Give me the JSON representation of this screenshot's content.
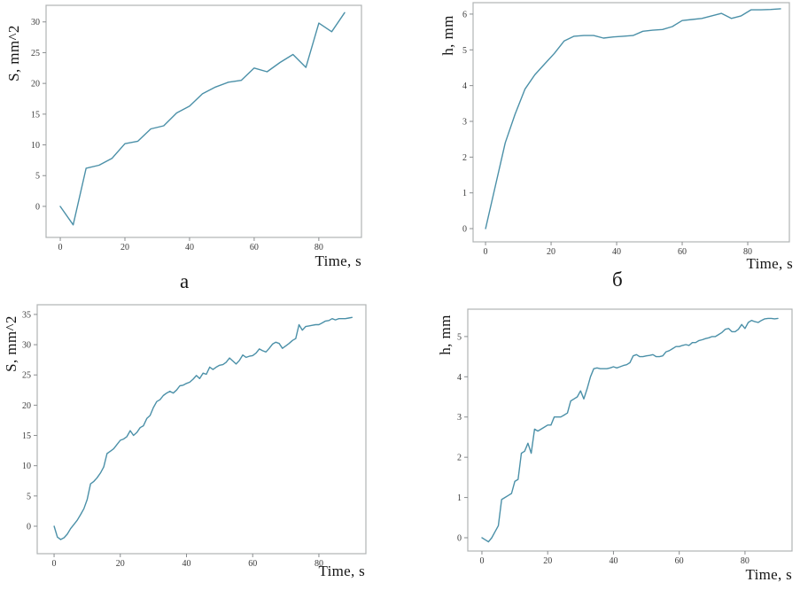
{
  "figure": {
    "line_color": "#4b90a8",
    "frame_color": "#b0b3b5",
    "tick_mark_color": "#8a8d8f",
    "tick_label_color": "#3a3a3a",
    "background": "#ffffff"
  },
  "chart_data": [
    {
      "type": "line",
      "title": "",
      "xlabel": "Time, s",
      "ylabel": "S, mm^2",
      "sublabel": "a",
      "legend": null,
      "grid": false,
      "xticks": [
        0,
        20,
        40,
        60,
        80
      ],
      "yticks": [
        0,
        5,
        10,
        15,
        20,
        25,
        30
      ],
      "xlim": [
        -4.4,
        93.2
      ],
      "ylim": [
        -5.05,
        32.7
      ],
      "x": [
        0,
        4,
        8,
        12,
        16,
        20,
        24,
        28,
        32,
        36,
        40,
        44,
        48,
        52,
        56,
        60,
        64,
        68,
        72,
        76,
        80,
        84,
        88
      ],
      "y": [
        0,
        -3,
        6.2,
        6.7,
        7.8,
        10.2,
        10.6,
        12.6,
        13.1,
        15.2,
        16.3,
        18.3,
        19.4,
        20.2,
        20.5,
        22.5,
        21.9,
        23.4,
        24.7,
        22.6,
        29.8,
        28.4,
        31.5
      ]
    },
    {
      "type": "line",
      "title": "",
      "xlabel": "Time, s",
      "ylabel": "h, mm",
      "sublabel": "б",
      "legend": null,
      "grid": false,
      "xticks": [
        0,
        20,
        40,
        60,
        80
      ],
      "yticks": [
        0,
        1,
        2,
        3,
        4,
        5,
        6
      ],
      "xlim": [
        -3.8,
        92.7
      ],
      "ylim": [
        -0.37,
        6.32
      ],
      "x": [
        0,
        3,
        6,
        9,
        12,
        15,
        18,
        21,
        24,
        27,
        30,
        33,
        36,
        39,
        42,
        45,
        48,
        51,
        54,
        57,
        60,
        63,
        66,
        69,
        72,
        75,
        78,
        81,
        84,
        87,
        90
      ],
      "y": [
        0,
        1.2,
        2.4,
        3.2,
        3.9,
        4.3,
        4.6,
        4.9,
        5.25,
        5.38,
        5.4,
        5.4,
        5.33,
        5.36,
        5.38,
        5.4,
        5.52,
        5.55,
        5.57,
        5.65,
        5.82,
        5.85,
        5.88,
        5.95,
        6.02,
        5.88,
        5.95,
        6.12,
        6.12,
        6.13,
        6.15
      ]
    },
    {
      "type": "line",
      "title": "",
      "xlabel": "Time, s",
      "ylabel": "S, mm^2",
      "legend": null,
      "grid": false,
      "xticks": [
        0,
        20,
        40,
        60,
        80
      ],
      "yticks": [
        0,
        5,
        10,
        15,
        20,
        25,
        30,
        35
      ],
      "xlim": [
        -5.1,
        94.2
      ],
      "ylim": [
        -4.54,
        36.6
      ],
      "x": [
        0,
        1,
        2,
        3,
        4,
        5,
        6,
        7,
        8,
        9,
        10,
        11,
        12,
        13,
        14,
        15,
        16,
        17,
        18,
        19,
        20,
        21,
        22,
        23,
        24,
        25,
        26,
        27,
        28,
        29,
        30,
        31,
        32,
        33,
        34,
        35,
        36,
        37,
        38,
        39,
        40,
        41,
        42,
        43,
        44,
        45,
        46,
        47,
        48,
        49,
        50,
        51,
        52,
        53,
        54,
        55,
        56,
        57,
        58,
        59,
        60,
        61,
        62,
        63,
        64,
        65,
        66,
        67,
        68,
        69,
        70,
        71,
        72,
        73,
        74,
        75,
        76,
        77,
        78,
        79,
        80,
        81,
        82,
        83,
        84,
        85,
        86,
        87,
        88,
        89,
        90
      ],
      "y": [
        0,
        -1.8,
        -2.2,
        -1.9,
        -1.3,
        -0.4,
        0.3,
        1.0,
        1.9,
        2.9,
        4.4,
        7.0,
        7.4,
        8.0,
        8.8,
        9.8,
        12.0,
        12.4,
        12.8,
        13.5,
        14.2,
        14.4,
        14.8,
        15.8,
        15.0,
        15.5,
        16.3,
        16.6,
        17.8,
        18.3,
        19.6,
        20.6,
        20.9,
        21.6,
        22.0,
        22.3,
        22.0,
        22.5,
        23.2,
        23.3,
        23.6,
        23.8,
        24.3,
        24.9,
        24.4,
        25.3,
        25.1,
        26.3,
        25.9,
        26.3,
        26.6,
        26.7,
        27.1,
        27.8,
        27.3,
        26.8,
        27.4,
        28.3,
        27.9,
        28.1,
        28.2,
        28.6,
        29.3,
        29.0,
        28.8,
        29.4,
        30.1,
        30.4,
        30.2,
        29.4,
        29.8,
        30.2,
        30.7,
        31.0,
        33.3,
        32.4,
        33.0,
        33.1,
        33.2,
        33.3,
        33.3,
        33.6,
        33.9,
        34.0,
        34.3,
        34.1,
        34.3,
        34.3,
        34.3,
        34.4,
        34.5
      ]
    },
    {
      "type": "line",
      "title": "",
      "xlabel": "Time, s",
      "ylabel": "h, mm",
      "legend": null,
      "grid": false,
      "xticks": [
        0,
        20,
        40,
        60,
        80
      ],
      "yticks": [
        0,
        1,
        2,
        3,
        4,
        5
      ],
      "xlim": [
        -4.3,
        94.3
      ],
      "ylim": [
        -0.33,
        5.68
      ],
      "x": [
        0,
        1,
        2,
        3,
        4,
        5,
        6,
        7,
        8,
        9,
        10,
        11,
        12,
        13,
        14,
        15,
        16,
        17,
        18,
        19,
        20,
        21,
        22,
        23,
        24,
        25,
        26,
        27,
        28,
        29,
        30,
        31,
        32,
        33,
        34,
        35,
        36,
        37,
        38,
        39,
        40,
        41,
        42,
        43,
        44,
        45,
        46,
        47,
        48,
        49,
        50,
        51,
        52,
        53,
        54,
        55,
        56,
        57,
        58,
        59,
        60,
        61,
        62,
        63,
        64,
        65,
        66,
        67,
        68,
        69,
        70,
        71,
        72,
        73,
        74,
        75,
        76,
        77,
        78,
        79,
        80,
        81,
        82,
        83,
        84,
        85,
        86,
        87,
        88,
        89,
        90
      ],
      "y": [
        0,
        -0.05,
        -0.1,
        0.0,
        0.15,
        0.3,
        0.95,
        1.0,
        1.05,
        1.1,
        1.4,
        1.45,
        2.1,
        2.15,
        2.35,
        2.1,
        2.7,
        2.65,
        2.7,
        2.75,
        2.8,
        2.8,
        3.0,
        3.0,
        3.0,
        3.05,
        3.1,
        3.4,
        3.45,
        3.5,
        3.65,
        3.45,
        3.7,
        4.0,
        4.2,
        4.22,
        4.2,
        4.2,
        4.2,
        4.22,
        4.25,
        4.22,
        4.25,
        4.28,
        4.3,
        4.35,
        4.52,
        4.55,
        4.5,
        4.5,
        4.52,
        4.53,
        4.55,
        4.5,
        4.5,
        4.52,
        4.62,
        4.65,
        4.7,
        4.75,
        4.75,
        4.78,
        4.8,
        4.78,
        4.85,
        4.85,
        4.9,
        4.92,
        4.95,
        4.97,
        5.0,
        5.0,
        5.05,
        5.1,
        5.18,
        5.2,
        5.12,
        5.12,
        5.18,
        5.3,
        5.2,
        5.35,
        5.4,
        5.37,
        5.35,
        5.4,
        5.44,
        5.45,
        5.45,
        5.44,
        5.45
      ]
    }
  ]
}
